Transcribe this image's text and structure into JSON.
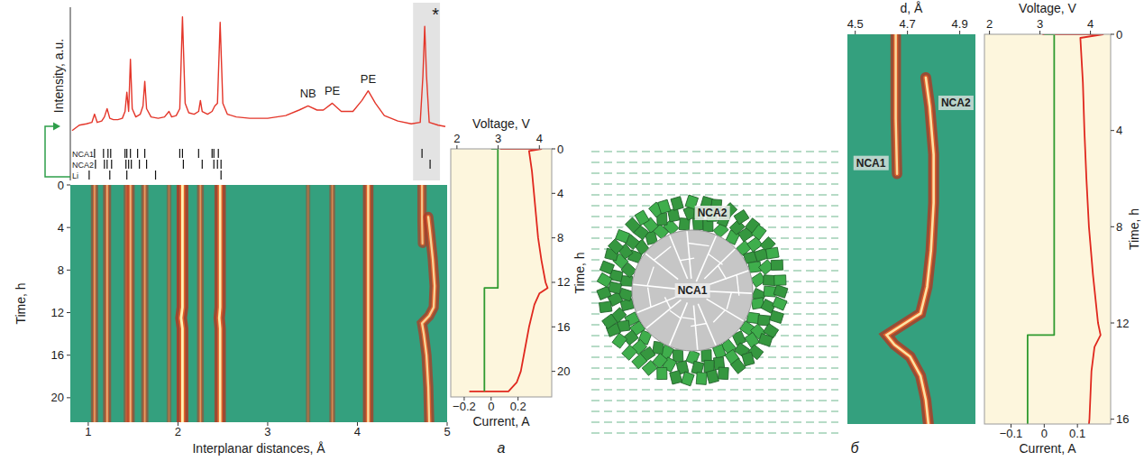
{
  "chart_data": [
    {
      "type": "line",
      "y_label": "Intensity, a.u.",
      "xlim": [
        0.8,
        5.0
      ],
      "ylim": [
        0,
        100
      ],
      "tick_labels": false,
      "color": "#e4362a",
      "x": [
        0.82,
        0.9,
        0.98,
        1.04,
        1.07,
        1.1,
        1.15,
        1.18,
        1.21,
        1.24,
        1.28,
        1.33,
        1.38,
        1.41,
        1.43,
        1.45,
        1.47,
        1.49,
        1.53,
        1.58,
        1.61,
        1.63,
        1.65,
        1.7,
        1.78,
        1.85,
        1.9,
        1.93,
        1.98,
        2.02,
        2.05,
        2.08,
        2.12,
        2.18,
        2.23,
        2.25,
        2.27,
        2.33,
        2.38,
        2.41,
        2.44,
        2.47,
        2.5,
        2.55,
        2.65,
        2.8,
        3.0,
        3.2,
        3.35,
        3.45,
        3.55,
        3.62,
        3.72,
        3.82,
        3.95,
        4.05,
        4.12,
        4.2,
        4.3,
        4.45,
        4.6,
        4.7,
        4.73,
        4.75,
        4.77,
        4.8,
        4.9,
        4.98
      ],
      "values": [
        10,
        14,
        15,
        16,
        22,
        16,
        17,
        20,
        26,
        19,
        18,
        18,
        19,
        24,
        38,
        24,
        62,
        26,
        20,
        22,
        28,
        46,
        26,
        20,
        19,
        20,
        24,
        20,
        21,
        26,
        93,
        30,
        23,
        22,
        24,
        32,
        24,
        22,
        24,
        28,
        30,
        89,
        30,
        22,
        20,
        19,
        19,
        21,
        25,
        28,
        25,
        25,
        30,
        24,
        24,
        32,
        39,
        30,
        21,
        17,
        15,
        16,
        50,
        86,
        50,
        16,
        14,
        13
      ],
      "highlight": [
        4.62,
        4.92
      ],
      "annotations": [
        {
          "text": "NB",
          "x": 3.45,
          "y": 34
        },
        {
          "text": "PE",
          "x": 3.72,
          "y": 36
        },
        {
          "text": "PE",
          "x": 4.12,
          "y": 45
        },
        {
          "text": "*",
          "x": 4.87,
          "y": 90
        }
      ],
      "reference_ticks": [
        {
          "name": "NCA1",
          "values": [
            1.07,
            1.17,
            1.22,
            1.25,
            1.41,
            1.43,
            1.47,
            1.55,
            1.63,
            2.02,
            2.05,
            2.23,
            2.38,
            2.4,
            2.45,
            4.72
          ]
        },
        {
          "name": "NCA2",
          "values": [
            1.08,
            1.18,
            1.21,
            1.26,
            1.42,
            1.45,
            1.48,
            1.57,
            1.65,
            2.06,
            2.27,
            2.4,
            2.44,
            2.48,
            4.81
          ]
        },
        {
          "name": "Li",
          "values": [
            1.01,
            1.24,
            1.43,
            1.75,
            2.48
          ]
        }
      ]
    },
    {
      "type": "heatmap",
      "x_label": "Interplanar distances, Å",
      "y_label": "Time, h",
      "xlim": [
        0.8,
        5.0
      ],
      "ylim": [
        22.3,
        0
      ],
      "xticks": [
        1,
        2,
        3,
        4,
        5
      ],
      "yticks": [
        0,
        4,
        8,
        12,
        16,
        20
      ],
      "series": [
        {
          "x": [
            1.07,
            1.07
          ],
          "values": [
            0,
            22.3
          ],
          "intensity": 0.45
        },
        {
          "x": [
            1.21,
            1.21
          ],
          "values": [
            0,
            22.3
          ],
          "intensity": 0.55
        },
        {
          "x": [
            1.43,
            1.43
          ],
          "values": [
            0,
            22.3
          ],
          "intensity": 0.35
        },
        {
          "x": [
            1.47,
            1.47
          ],
          "values": [
            0,
            22.3
          ],
          "intensity": 0.6
        },
        {
          "x": [
            1.63,
            1.63
          ],
          "values": [
            0,
            22.3
          ],
          "intensity": 0.45
        },
        {
          "x": [
            1.9,
            1.9
          ],
          "values": [
            0,
            22.3
          ],
          "intensity": 0.15
        },
        {
          "x": [
            2.05,
            2.05,
            2.035,
            2.05,
            2.05
          ],
          "values": [
            0,
            11.5,
            12.5,
            13.5,
            22.3
          ],
          "intensity": 1.0
        },
        {
          "x": [
            2.25,
            2.25
          ],
          "values": [
            0,
            22.3
          ],
          "intensity": 0.4
        },
        {
          "x": [
            2.47,
            2.47,
            2.46,
            2.47,
            2.47
          ],
          "values": [
            0,
            11.5,
            12.5,
            13.5,
            22.3
          ],
          "intensity": 0.95
        },
        {
          "x": [
            3.45,
            3.45
          ],
          "values": [
            0,
            22.3
          ],
          "intensity": 0.12
        },
        {
          "x": [
            3.72,
            3.72
          ],
          "values": [
            0,
            22.3
          ],
          "intensity": 0.3
        },
        {
          "x": [
            4.12,
            4.12
          ],
          "values": [
            0,
            22.3
          ],
          "intensity": 0.85
        },
        {
          "x": [
            4.72,
            4.72,
            4.725
          ],
          "values": [
            0,
            3.5,
            5.5
          ],
          "intensity": 0.7
        },
        {
          "x": [
            4.79,
            4.81,
            4.84,
            4.86,
            4.85,
            4.8,
            4.72,
            4.74,
            4.77,
            4.79,
            4.8
          ],
          "values": [
            3,
            4.5,
            7,
            9.5,
            11.5,
            12.3,
            13,
            14,
            16,
            19,
            22.3
          ],
          "intensity": 0.8
        }
      ]
    },
    {
      "type": "line",
      "x_label": "Voltage, V",
      "x2_label": "Current, A",
      "y_label": "Time, h",
      "xlim": [
        1.85,
        4.3
      ],
      "xticks": [
        2,
        3,
        4
      ],
      "x2lim": [
        -0.3,
        0.45
      ],
      "x2ticks": [
        {
          "value": -0.2,
          "label": "−0.2"
        },
        0,
        0.2
      ],
      "ylim": [
        22.3,
        0
      ],
      "yticks": [
        0,
        4,
        8,
        12,
        16,
        20
      ],
      "series": [
        {
          "color": "#e0281e",
          "x": [
            3.05,
            4.05,
            3.75,
            3.82,
            3.87,
            3.92,
            3.97,
            4.05,
            4.15,
            4.2,
            4.0,
            3.88,
            3.75,
            3.65,
            3.55,
            3.45,
            3.25,
            2.3
          ],
          "values": [
            0,
            0,
            0.2,
            2,
            4,
            6,
            8,
            10,
            12,
            12.5,
            13,
            14,
            16,
            18,
            20,
            21,
            21.8,
            21.8
          ]
        },
        {
          "color": "#2f9a2f",
          "axis": "x2",
          "x": [
            0,
            0.05,
            0.05,
            -0.05,
            -0.05
          ],
          "values": [
            0,
            0,
            12.5,
            12.5,
            21.8
          ]
        }
      ]
    },
    {
      "type": "heatmap",
      "x_label": "d, Å",
      "xlim": [
        4.47,
        4.96
      ],
      "xticks": [
        4.5,
        4.7,
        4.9
      ],
      "ylim": [
        16.2,
        0
      ],
      "tick_labels": "x",
      "annotations": [
        {
          "text": "NCA1",
          "x": 4.56,
          "y": 5.5
        },
        {
          "text": "NCA2",
          "x": 4.885,
          "y": 3
        }
      ],
      "series": [
        {
          "x": [
            4.655,
            4.655,
            4.66
          ],
          "values": [
            0,
            3.5,
            5.8
          ],
          "intensity": 0.85
        },
        {
          "x": [
            4.77,
            4.785,
            4.8,
            4.8,
            4.79,
            4.775,
            4.75,
            4.62,
            4.65,
            4.71,
            4.75,
            4.77,
            4.78
          ],
          "values": [
            1.8,
            3,
            5,
            7,
            9,
            10.5,
            11.6,
            12.5,
            12.9,
            13.4,
            14.2,
            15.2,
            16.2
          ],
          "intensity": 0.9
        }
      ]
    },
    {
      "type": "line",
      "x_label": "Voltage, V",
      "x2_label": "Current, A",
      "y_label": "Time, h",
      "xlim": [
        1.9,
        4.4
      ],
      "xticks": [
        2,
        3,
        4
      ],
      "x2lim": [
        -0.18,
        0.2
      ],
      "x2ticks": [
        {
          "value": -0.1,
          "label": "−0.1"
        },
        0,
        0.1
      ],
      "ylim": [
        16.2,
        0
      ],
      "yticks": [
        0,
        4,
        8,
        12,
        16
      ],
      "series": [
        {
          "color": "#e0281e",
          "x": [
            3.05,
            4.25,
            3.8,
            3.85,
            3.88,
            3.92,
            3.97,
            4.05,
            4.15,
            4.2,
            4.08,
            4.02,
            3.98,
            3.97
          ],
          "values": [
            0,
            0,
            0.15,
            2,
            4,
            6,
            8,
            10,
            12,
            12.5,
            13,
            14,
            16,
            16.2
          ]
        },
        {
          "color": "#2f9a2f",
          "axis": "x2",
          "x": [
            0,
            0.03,
            0.03,
            -0.05,
            -0.05
          ],
          "values": [
            0,
            0,
            12.5,
            12.5,
            16.2
          ]
        }
      ]
    }
  ],
  "schematic": {
    "core": "NCA1",
    "shell": "NCA2"
  },
  "panel_labels": [
    "а",
    "б"
  ]
}
